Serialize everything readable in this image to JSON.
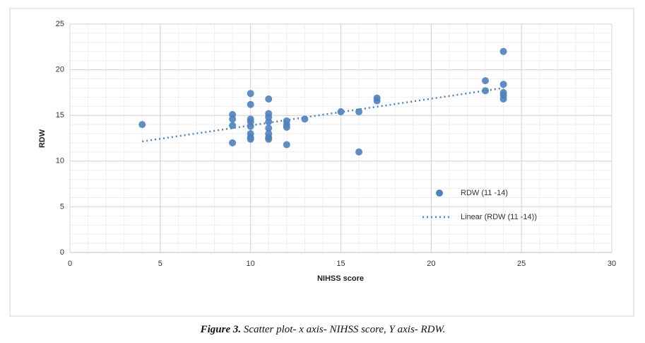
{
  "chart_data": {
    "type": "scatter",
    "x_label": "NIHSS score",
    "y_label": "RDW",
    "xlim": [
      0,
      30
    ],
    "xticks": [
      0,
      5,
      10,
      15,
      20,
      25,
      30
    ],
    "ylim": [
      0,
      25
    ],
    "yticks": [
      0,
      5,
      10,
      15,
      20,
      25
    ],
    "grid": true,
    "minor_grid": true,
    "legend_position": "right",
    "series": [
      {
        "name": "RDW (11 -14)",
        "color": "#4f81bd",
        "x": [
          4,
          9,
          9,
          9,
          9,
          10,
          10,
          10,
          10,
          10,
          10,
          10,
          10,
          11,
          11,
          11,
          11,
          11,
          11,
          11,
          11,
          12,
          12,
          12,
          12,
          13,
          15,
          16,
          16,
          17,
          17,
          23,
          23,
          24,
          24,
          24,
          24,
          24
        ],
        "y": [
          14.0,
          15.1,
          14.6,
          13.9,
          12.0,
          17.4,
          16.2,
          14.6,
          14.3,
          13.8,
          13.0,
          12.6,
          12.4,
          16.8,
          15.2,
          14.8,
          14.3,
          13.6,
          13.0,
          12.6,
          12.4,
          14.4,
          14.0,
          13.7,
          11.8,
          14.6,
          15.4,
          15.4,
          11.0,
          16.9,
          16.6,
          18.8,
          17.7,
          22.0,
          18.4,
          17.5,
          17.2,
          16.8
        ]
      },
      {
        "name": "Linear (RDW (11 -14))",
        "type": "trendline",
        "color": "#4f81bd",
        "x": [
          4,
          24
        ],
        "y": [
          12.15,
          18.0
        ]
      }
    ],
    "caption": {
      "label": "Figure 3.",
      "text": "Scatter plot- x axis- NIHSS score, Y axis- RDW."
    }
  }
}
